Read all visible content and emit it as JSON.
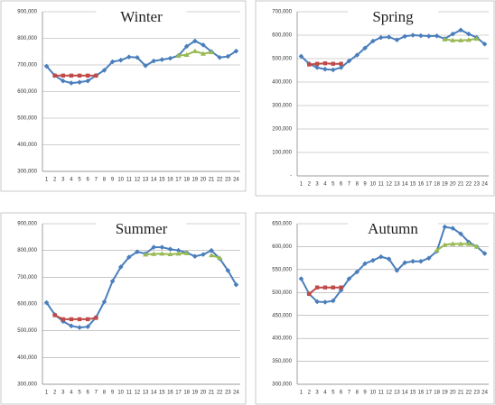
{
  "chart_data": [
    {
      "type": "line",
      "title": "Winter",
      "categories": [
        1,
        2,
        3,
        4,
        5,
        6,
        7,
        8,
        9,
        10,
        11,
        12,
        13,
        14,
        15,
        16,
        17,
        18,
        19,
        20,
        21,
        22,
        23,
        24
      ],
      "ylim": [
        300000,
        900000
      ],
      "yticks": [
        {
          "value": 300000,
          "label": "300,000"
        },
        {
          "value": 400000,
          "label": "400,000"
        },
        {
          "value": 500000,
          "label": "500,000"
        },
        {
          "value": 600000,
          "label": "600,000"
        },
        {
          "value": 700000,
          "label": "700,000"
        },
        {
          "value": 800000,
          "label": "800,000"
        },
        {
          "value": 900000,
          "label": "900,000"
        }
      ],
      "grid": true,
      "series": [
        {
          "color": "#4a7ebb",
          "marker": "diamond",
          "values": [
            695000,
            660000,
            640000,
            632000,
            635000,
            640000,
            660000,
            680000,
            712000,
            718000,
            730000,
            728000,
            697000,
            715000,
            720000,
            725000,
            735000,
            770000,
            790000,
            775000,
            750000,
            728000,
            732000,
            752000
          ]
        },
        {
          "color": "#be4b48",
          "marker": "square",
          "values": [
            null,
            660000,
            660000,
            660000,
            660000,
            660000,
            660000,
            null,
            null,
            null,
            null,
            null,
            null,
            null,
            null,
            null,
            null,
            null,
            null,
            null,
            null,
            null,
            null,
            null
          ]
        },
        {
          "color": "#98b954",
          "marker": "triangle",
          "values": [
            null,
            null,
            null,
            null,
            null,
            null,
            null,
            null,
            null,
            null,
            null,
            null,
            null,
            null,
            null,
            null,
            735000,
            738000,
            752000,
            742000,
            748000,
            null,
            null,
            null
          ]
        }
      ]
    },
    {
      "type": "line",
      "title": "Spring",
      "categories": [
        1,
        2,
        3,
        4,
        5,
        6,
        7,
        8,
        9,
        10,
        11,
        12,
        13,
        14,
        15,
        16,
        17,
        18,
        19,
        20,
        21,
        22,
        23,
        24
      ],
      "ylim": [
        0,
        700000
      ],
      "yticks": [
        {
          "value": 0,
          "label": "-"
        },
        {
          "value": 100000,
          "label": "100,000"
        },
        {
          "value": 200000,
          "label": "200,000"
        },
        {
          "value": 300000,
          "label": "300,000"
        },
        {
          "value": 400000,
          "label": "400,000"
        },
        {
          "value": 500000,
          "label": "500,000"
        },
        {
          "value": 600000,
          "label": "600,000"
        },
        {
          "value": 700000,
          "label": "700,000"
        }
      ],
      "grid": true,
      "series": [
        {
          "color": "#4a7ebb",
          "marker": "diamond",
          "values": [
            510000,
            478000,
            462000,
            455000,
            452000,
            462000,
            490000,
            515000,
            545000,
            575000,
            590000,
            592000,
            580000,
            595000,
            600000,
            598000,
            596000,
            597000,
            585000,
            605000,
            622000,
            605000,
            590000,
            562000
          ]
        },
        {
          "color": "#be4b48",
          "marker": "square",
          "values": [
            null,
            475000,
            478000,
            480000,
            478000,
            478000,
            null,
            null,
            null,
            null,
            null,
            null,
            null,
            null,
            null,
            null,
            null,
            null,
            null,
            null,
            null,
            null,
            null,
            null
          ]
        },
        {
          "color": "#98b954",
          "marker": "triangle",
          "values": [
            null,
            null,
            null,
            null,
            null,
            null,
            null,
            null,
            null,
            null,
            null,
            null,
            null,
            null,
            null,
            null,
            null,
            null,
            582000,
            578000,
            578000,
            580000,
            585000,
            null
          ]
        }
      ]
    },
    {
      "type": "line",
      "title": "Summer",
      "categories": [
        1,
        2,
        3,
        4,
        5,
        6,
        7,
        8,
        9,
        10,
        11,
        12,
        13,
        14,
        15,
        16,
        17,
        18,
        19,
        20,
        21,
        22,
        23,
        24
      ],
      "ylim": [
        300000,
        900000
      ],
      "yticks": [
        {
          "value": 300000,
          "label": "300,000"
        },
        {
          "value": 400000,
          "label": "400,000"
        },
        {
          "value": 500000,
          "label": "500,000"
        },
        {
          "value": 600000,
          "label": "600,000"
        },
        {
          "value": 700000,
          "label": "700,000"
        },
        {
          "value": 800000,
          "label": "800,000"
        },
        {
          "value": 900000,
          "label": "900,000"
        }
      ],
      "grid": true,
      "series": [
        {
          "color": "#4a7ebb",
          "marker": "diamond",
          "values": [
            605000,
            560000,
            535000,
            518000,
            512000,
            515000,
            550000,
            608000,
            685000,
            738000,
            775000,
            795000,
            788000,
            812000,
            812000,
            805000,
            800000,
            792000,
            778000,
            785000,
            800000,
            770000,
            725000,
            672000
          ]
        },
        {
          "color": "#be4b48",
          "marker": "square",
          "values": [
            null,
            558000,
            543000,
            543000,
            543000,
            543000,
            548000,
            null,
            null,
            null,
            null,
            null,
            null,
            null,
            null,
            null,
            null,
            null,
            null,
            null,
            null,
            null,
            null,
            null
          ]
        },
        {
          "color": "#98b954",
          "marker": "triangle",
          "values": [
            null,
            null,
            null,
            null,
            null,
            null,
            null,
            null,
            null,
            null,
            null,
            null,
            785000,
            787000,
            788000,
            786000,
            788000,
            790000,
            null,
            null,
            782000,
            772000,
            null,
            null
          ]
        }
      ]
    },
    {
      "type": "line",
      "title": "Autumn",
      "categories": [
        1,
        2,
        3,
        4,
        5,
        6,
        7,
        8,
        9,
        10,
        11,
        12,
        13,
        14,
        15,
        16,
        17,
        18,
        19,
        20,
        21,
        22,
        23,
        24
      ],
      "ylim": [
        300000,
        650000
      ],
      "yticks": [
        {
          "value": 300000,
          "label": "300,000"
        },
        {
          "value": 350000,
          "label": "350,000"
        },
        {
          "value": 400000,
          "label": "400,000"
        },
        {
          "value": 450000,
          "label": "450,000"
        },
        {
          "value": 500000,
          "label": "500,000"
        },
        {
          "value": 550000,
          "label": "550,000"
        },
        {
          "value": 600000,
          "label": "600,000"
        },
        {
          "value": 650000,
          "label": "650,000"
        }
      ],
      "grid": true,
      "series": [
        {
          "color": "#4a7ebb",
          "marker": "diamond",
          "values": [
            530000,
            497000,
            480000,
            479000,
            482000,
            505000,
            530000,
            545000,
            563000,
            570000,
            578000,
            573000,
            548000,
            565000,
            568000,
            568000,
            575000,
            590000,
            643000,
            640000,
            628000,
            610000,
            600000,
            585000
          ]
        },
        {
          "color": "#be4b48",
          "marker": "square",
          "values": [
            null,
            497000,
            511000,
            511000,
            511000,
            511000,
            null,
            null,
            null,
            null,
            null,
            null,
            null,
            null,
            null,
            null,
            null,
            null,
            null,
            null,
            null,
            null,
            null,
            null
          ]
        },
        {
          "color": "#98b954",
          "marker": "triangle",
          "values": [
            null,
            null,
            null,
            null,
            null,
            null,
            null,
            null,
            null,
            null,
            null,
            null,
            null,
            null,
            null,
            null,
            null,
            592000,
            604000,
            606000,
            606000,
            606000,
            600000,
            null
          ]
        }
      ]
    }
  ]
}
